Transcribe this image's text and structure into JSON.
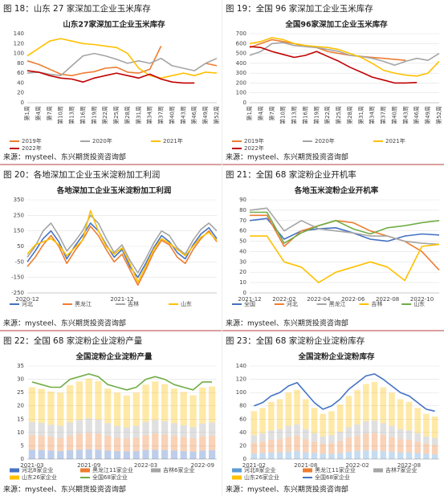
{
  "chart_data": [
    {
      "caption": "图 18：山东 27 家深加工企业玉米库存",
      "title": "山东27家深加工企业玉米库存",
      "source": "来源：mysteel、东兴期货投资咨询部",
      "type": "line",
      "grid": false,
      "categories": [
        "第1周",
        "第4周",
        "第7周",
        "第10周",
        "第13周",
        "第16周",
        "第19周",
        "第22周",
        "第25周",
        "第28周",
        "第31周",
        "第34周",
        "第37周",
        "第40周",
        "第43周",
        "第46周",
        "第49周",
        "第52周"
      ],
      "ylim": [
        0,
        140
      ],
      "yticks": [
        0,
        20,
        40,
        60,
        80,
        100,
        120,
        140
      ],
      "series": [
        {
          "name": "2019年",
          "color": "#ed7d31",
          "values": [
            85,
            78,
            68,
            58,
            55,
            60,
            63,
            70,
            72,
            62,
            60,
            68,
            115,
            null,
            null,
            null,
            80,
            75
          ]
        },
        {
          "name": "2020年",
          "color": "#a5a5a5",
          "values": [
            60,
            62,
            58,
            55,
            75,
            95,
            100,
            95,
            88,
            80,
            85,
            80,
            90,
            75,
            70,
            65,
            80,
            90
          ]
        },
        {
          "name": "2021年",
          "color": "#ffc000",
          "values": [
            95,
            110,
            125,
            130,
            125,
            120,
            118,
            115,
            112,
            100,
            70,
            55,
            50,
            55,
            60,
            55,
            62,
            60
          ]
        },
        {
          "name": "2022年",
          "color": "#c00000",
          "values": [
            65,
            62,
            55,
            50,
            48,
            42,
            50,
            55,
            60,
            55,
            50,
            58,
            48,
            42,
            40,
            40,
            null,
            null
          ]
        }
      ]
    },
    {
      "caption": "图 19：全国 96 家深加工企业玉米库存",
      "title": "全国96家深加工企业玉米库存",
      "source": "来源：mysteel、东兴期货投资咨询部",
      "type": "line",
      "grid": true,
      "categories": [
        "第1周",
        "第4周",
        "第7周",
        "第10周",
        "第13周",
        "第16周",
        "第19周",
        "第22周",
        "第25周",
        "第28周",
        "第31周",
        "第34周",
        "第37周",
        "第40周",
        "第43周",
        "第46周",
        "第49周",
        "第52周"
      ],
      "ylim": [
        0,
        700
      ],
      "yticks": [
        0,
        100,
        200,
        300,
        400,
        500,
        600,
        700
      ],
      "series": [
        {
          "name": "2019年",
          "color": "#ed7d31",
          "values": [
            560,
            600,
            640,
            620,
            600,
            570,
            560,
            520,
            500,
            480,
            470,
            460,
            450,
            440,
            430,
            null,
            null,
            null
          ]
        },
        {
          "name": "2020年",
          "color": "#a5a5a5",
          "values": [
            480,
            520,
            600,
            610,
            580,
            570,
            560,
            540,
            520,
            480,
            470,
            450,
            420,
            380,
            420,
            450,
            430,
            500
          ]
        },
        {
          "name": "2021年",
          "color": "#ffc000",
          "values": [
            600,
            620,
            660,
            640,
            600,
            580,
            570,
            560,
            540,
            500,
            460,
            400,
            330,
            300,
            280,
            270,
            300,
            420
          ]
        },
        {
          "name": "2022年",
          "color": "#c00000",
          "values": [
            570,
            560,
            520,
            490,
            460,
            480,
            520,
            470,
            420,
            360,
            310,
            260,
            230,
            200,
            200,
            205,
            null,
            null
          ]
        }
      ]
    },
    {
      "caption": "图 20：各地深加工企业玉米淀粉加工利润",
      "title": "各地深加工企业玉米淀粉加工利润",
      "source": "来源：mysteel、东兴期货投资咨询部",
      "type": "line",
      "grid": true,
      "categories": [
        "2020-12",
        null,
        null,
        null,
        null,
        null,
        null,
        null,
        null,
        null,
        null,
        null,
        "2021-12",
        null,
        null,
        null,
        null,
        null,
        null,
        null,
        null,
        null,
        null,
        null,
        null
      ],
      "ylim": [
        -250,
        350
      ],
      "yticks": [
        -250,
        -150,
        -50,
        50,
        150,
        250,
        350
      ],
      "series": [
        {
          "name": "河北",
          "color": "#4472c4",
          "values": [
            -50,
            20,
            100,
            150,
            80,
            -30,
            50,
            120,
            200,
            150,
            60,
            -20,
            30,
            -80,
            -150,
            -60,
            40,
            120,
            80,
            10,
            -30,
            60,
            130,
            170,
            100
          ]
        },
        {
          "name": "黑龙江",
          "color": "#ed7d31",
          "values": [
            -80,
            -20,
            60,
            120,
            50,
            -60,
            20,
            90,
            180,
            120,
            30,
            -50,
            0,
            -100,
            -200,
            -100,
            10,
            90,
            60,
            -20,
            -60,
            30,
            100,
            150,
            80
          ]
        },
        {
          "name": "吉林",
          "color": "#a5a5a5",
          "values": [
            -20,
            50,
            150,
            200,
            120,
            20,
            80,
            150,
            250,
            200,
            100,
            10,
            60,
            -40,
            -120,
            -30,
            70,
            150,
            120,
            40,
            0,
            90,
            160,
            200,
            150
          ]
        },
        {
          "name": "山东",
          "color": "#ffc000",
          "values": [
            0,
            60,
            80,
            100,
            60,
            -10,
            40,
            90,
            280,
            150,
            50,
            0,
            40,
            -60,
            -180,
            -80,
            30,
            100,
            70,
            30,
            -10,
            50,
            110,
            140,
            90
          ]
        }
      ]
    },
    {
      "caption": "图 21：全国 68 家淀粉企业开机率",
      "title": "各地玉米淀粉企业开机率",
      "source": "来源：mysteel、东兴期货投资咨询部",
      "type": "line",
      "grid": true,
      "categories": [
        "2021-12",
        null,
        "2022-02",
        null,
        "2022-04",
        null,
        "2022-06",
        null,
        "2022-08",
        null,
        "2022-10",
        null
      ],
      "ylim": [
        0,
        90
      ],
      "yticks": [
        0,
        10,
        20,
        30,
        40,
        50,
        60,
        70,
        80,
        90
      ],
      "series": [
        {
          "name": "全国",
          "color": "#4472c4",
          "values": [
            70,
            72,
            52,
            60,
            62,
            63,
            58,
            52,
            50,
            55,
            57,
            56
          ]
        },
        {
          "name": "河北",
          "color": "#ed7d31",
          "values": [
            75,
            75,
            45,
            60,
            65,
            70,
            68,
            60,
            55,
            50,
            40,
            22
          ]
        },
        {
          "name": "黑龙江",
          "color": "#a5a5a5",
          "values": [
            80,
            82,
            60,
            70,
            62,
            60,
            58,
            55,
            55,
            50,
            48,
            47
          ]
        },
        {
          "name": "吉林",
          "color": "#ffc000",
          "values": [
            55,
            55,
            30,
            25,
            10,
            20,
            25,
            30,
            25,
            12,
            45,
            47
          ]
        },
        {
          "name": "山东",
          "color": "#70ad47",
          "values": [
            78,
            78,
            48,
            58,
            65,
            70,
            62,
            57,
            63,
            65,
            68,
            70
          ]
        }
      ]
    },
    {
      "caption": "图 22：全国 68 家淀粉企业淀粉产量",
      "title": "全国淀粉企业淀粉产量",
      "source": "来源：mysteel、东兴期货投资咨询部",
      "type": "bar-line",
      "grid": true,
      "categories": [
        "2021-03",
        null,
        null,
        null,
        null,
        null,
        "2021-09",
        null,
        null,
        null,
        null,
        null,
        "2022-03",
        null,
        null,
        null,
        null,
        null,
        "2022-09",
        null
      ],
      "ylim": [
        0,
        35
      ],
      "yticks": [
        0,
        5,
        10,
        15,
        20,
        25,
        30,
        35
      ],
      "series": [
        {
          "name": "河北8家企业",
          "kind": "bar",
          "color": "#4472c4",
          "values": [
            3.5,
            3.4,
            3.2,
            3,
            3.3,
            3.5,
            3.6,
            3.5,
            3.2,
            3,
            2.9,
            3,
            3.4,
            3.5,
            3.4,
            3.2,
            3,
            2.8,
            3.2,
            3.3
          ]
        },
        {
          "name": "黑龙江11家企业",
          "kind": "bar",
          "color": "#ed7d31",
          "values": [
            5.5,
            5.4,
            5.2,
            5,
            5.5,
            6,
            6.2,
            6,
            5.5,
            5,
            4.8,
            5,
            5.6,
            6,
            5.8,
            5.5,
            5.2,
            5,
            5.4,
            5.5
          ]
        },
        {
          "name": "吉林6家企业",
          "kind": "bar",
          "color": "#a5a5a5",
          "values": [
            5,
            4.8,
            4.5,
            4.5,
            5,
            5.2,
            5.5,
            5.3,
            4.8,
            4.5,
            4.2,
            4.5,
            5,
            5.2,
            5,
            4.8,
            4.5,
            4.2,
            4.8,
            5
          ]
        },
        {
          "name": "山东26家企业",
          "kind": "bar",
          "color": "#ffc000",
          "values": [
            13,
            12.8,
            12.5,
            12.5,
            14,
            14.5,
            15,
            14.5,
            13,
            12.5,
            12,
            12.5,
            14,
            14.5,
            14,
            13,
            12.5,
            12,
            13.5,
            13.5
          ]
        },
        {
          "name": "全国68家企业",
          "kind": "line",
          "color": "#70ad47",
          "values": [
            29,
            28,
            27,
            27,
            30,
            31,
            32,
            31,
            28,
            27,
            26,
            27,
            30,
            31,
            30,
            28,
            27,
            26,
            29,
            29
          ]
        }
      ]
    },
    {
      "caption": "图 23：全国 68 家淀粉企业淀粉库存",
      "title": "全国淀粉企业淀粉库存",
      "source": "来源：mysteel、东兴期货投资咨询部",
      "type": "bar-line",
      "grid": true,
      "categories": [
        "2021-02",
        null,
        null,
        null,
        null,
        null,
        "2021-08",
        null,
        null,
        null,
        null,
        null,
        "2022-02",
        null,
        null,
        null,
        null,
        null,
        "2022-08",
        null,
        null,
        null
      ],
      "ylim": [
        0,
        140
      ],
      "yticks": [
        0,
        20,
        40,
        60,
        80,
        100,
        120,
        140
      ],
      "series": [
        {
          "name": "河北8家企业",
          "kind": "bar",
          "color": "#5b9bd5",
          "values": [
            8,
            9,
            10,
            10,
            11,
            12,
            10,
            9,
            8,
            8,
            9,
            11,
            12,
            13,
            13,
            12,
            11,
            10,
            10,
            9,
            8,
            7
          ]
        },
        {
          "name": "黑龙江11家企业",
          "kind": "bar",
          "color": "#ed7d31",
          "values": [
            16,
            17,
            19,
            20,
            22,
            23,
            20,
            17,
            15,
            16,
            18,
            21,
            23,
            25,
            26,
            24,
            22,
            20,
            19,
            17,
            15,
            14
          ]
        },
        {
          "name": "吉林7家企业",
          "kind": "bar",
          "color": "#a5a5a5",
          "values": [
            12,
            13,
            14,
            15,
            17,
            17,
            15,
            13,
            11,
            12,
            14,
            16,
            17,
            19,
            19,
            18,
            17,
            15,
            14,
            13,
            11,
            11
          ]
        },
        {
          "name": "山东26家企业",
          "kind": "bar",
          "color": "#ffc000",
          "values": [
            36,
            38,
            43,
            45,
            50,
            52,
            45,
            38,
            34,
            36,
            41,
            47,
            52,
            56,
            58,
            54,
            50,
            45,
            43,
            38,
            34,
            32
          ]
        },
        {
          "name": "全国68家企业",
          "kind": "line",
          "color": "#4472c4",
          "values": [
            80,
            85,
            95,
            100,
            110,
            115,
            100,
            85,
            75,
            80,
            90,
            105,
            115,
            125,
            128,
            120,
            110,
            100,
            95,
            85,
            75,
            72
          ]
        }
      ]
    }
  ]
}
